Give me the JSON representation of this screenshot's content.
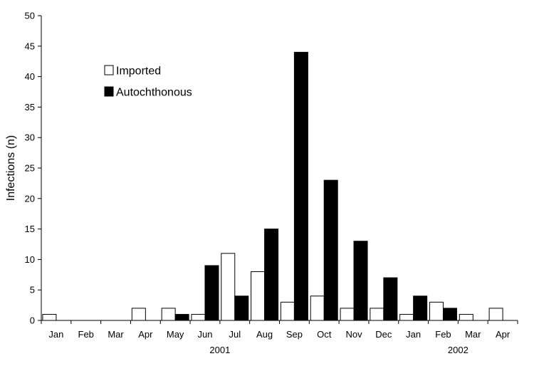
{
  "chart_data": {
    "type": "bar",
    "ylabel": "Infections (n)",
    "ylim": [
      0,
      50
    ],
    "yticks": [
      0,
      5,
      10,
      15,
      20,
      25,
      30,
      35,
      40,
      45,
      50
    ],
    "categories": [
      "Jan",
      "Feb",
      "Mar",
      "Apr",
      "May",
      "Jun",
      "Jul",
      "Aug",
      "Sep",
      "Oct",
      "Nov",
      "Dec",
      "Jan",
      "Feb",
      "Mar",
      "Apr"
    ],
    "year_groups": [
      {
        "label": "2001",
        "start": 0,
        "end": 11
      },
      {
        "label": "2002",
        "start": 12,
        "end": 15
      }
    ],
    "series": [
      {
        "name": "Imported",
        "color": "#ffffff",
        "values": [
          1,
          0,
          0,
          2,
          2,
          1,
          11,
          8,
          3,
          4,
          2,
          2,
          1,
          3,
          1,
          2
        ]
      },
      {
        "name": "Autochthonous",
        "color": "#000000",
        "values": [
          0,
          0,
          0,
          0,
          1,
          9,
          4,
          15,
          44,
          23,
          13,
          7,
          4,
          2,
          0,
          0
        ]
      }
    ],
    "legend_position": "top-left",
    "grid": false
  }
}
